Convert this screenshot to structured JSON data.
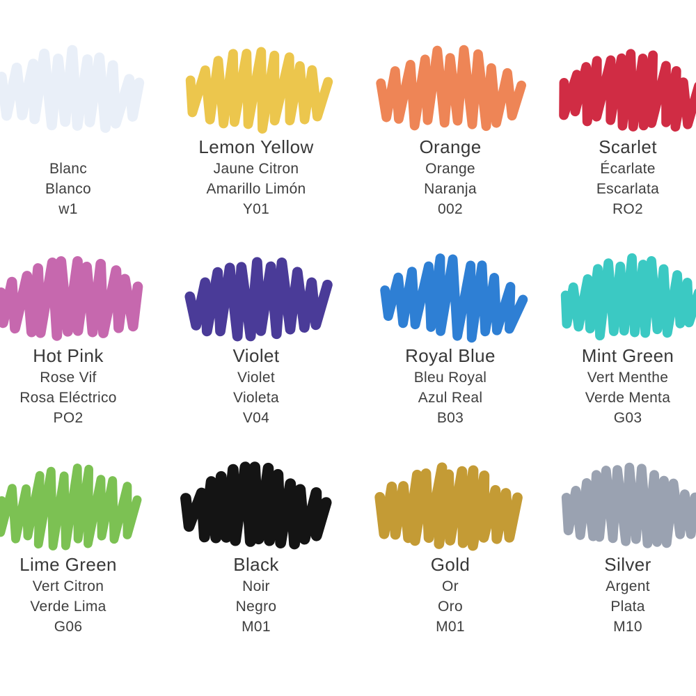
{
  "page": {
    "background": "#ffffff",
    "text_color": "#3a3a3a"
  },
  "palette": {
    "swatches": [
      {
        "name_en": "",
        "name_fr": "Blanc",
        "name_es": "Blanco",
        "code": "w1",
        "color": "#e9eff8"
      },
      {
        "name_en": "Lemon Yellow",
        "name_fr": "Jaune Citron",
        "name_es": "Amarillo Limón",
        "code": "Y01",
        "color": "#ecc64d"
      },
      {
        "name_en": "Orange",
        "name_fr": "Orange",
        "name_es": "Naranja",
        "code": "002",
        "color": "#ee8556"
      },
      {
        "name_en": "Scarlet",
        "name_fr": "Écarlate",
        "name_es": "Escarlata",
        "code": "RO2",
        "color": "#d02c44"
      },
      {
        "name_en": "Hot Pink",
        "name_fr": "Rose Vif",
        "name_es": "Rosa Eléctrico",
        "code": "PO2",
        "color": "#c668ae"
      },
      {
        "name_en": "Violet",
        "name_fr": "Violet",
        "name_es": "Violeta",
        "code": "V04",
        "color": "#4a3b98"
      },
      {
        "name_en": "Royal Blue",
        "name_fr": "Bleu Royal",
        "name_es": "Azul Real",
        "code": "B03",
        "color": "#2e7fd4"
      },
      {
        "name_en": "Mint Green",
        "name_fr": "Vert Menthe",
        "name_es": "Verde Menta",
        "code": "G03",
        "color": "#3bc9c3"
      },
      {
        "name_en": "Lime Green",
        "name_fr": "Vert Citron",
        "name_es": "Verde Lima",
        "code": "G06",
        "color": "#7cc153"
      },
      {
        "name_en": "Black",
        "name_fr": "Noir",
        "name_es": "Negro",
        "code": "M01",
        "color": "#141414"
      },
      {
        "name_en": "Gold",
        "name_fr": "Or",
        "name_es": "Oro",
        "code": "M01",
        "color": "#c49b35"
      },
      {
        "name_en": "Silver",
        "name_fr": "Argent",
        "name_es": "Plata",
        "code": "M10",
        "color": "#9aa2b1"
      }
    ]
  }
}
